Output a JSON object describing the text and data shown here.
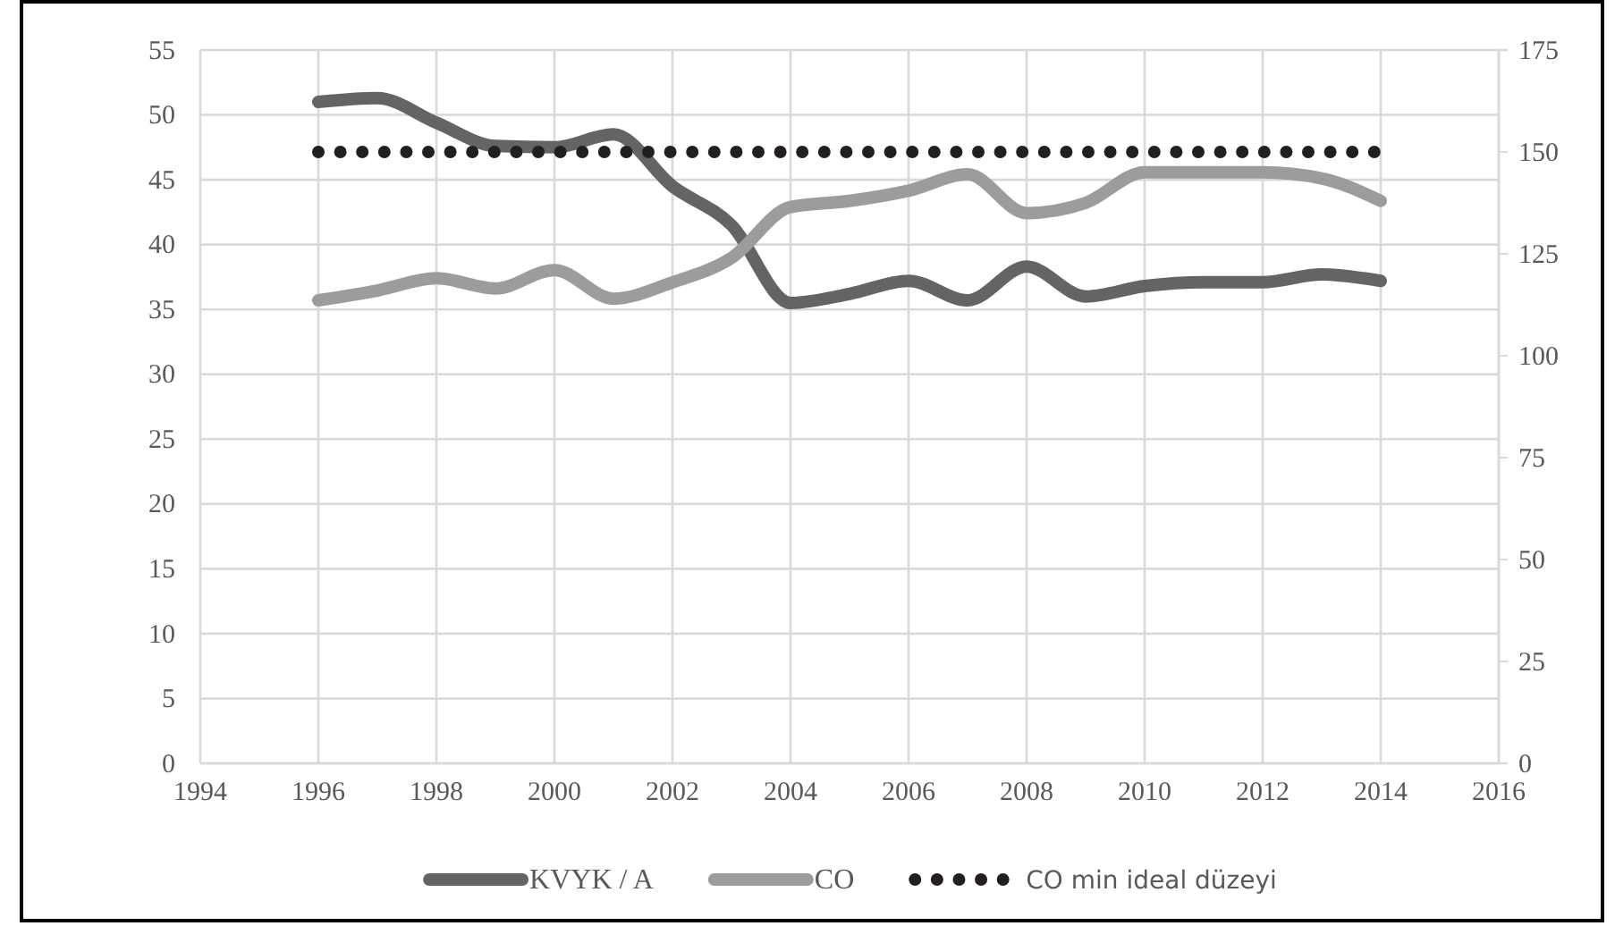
{
  "chart_data": {
    "type": "line",
    "x": [
      1996,
      1997,
      1998,
      1999,
      2000,
      2001,
      2002,
      2003,
      2004,
      2005,
      2006,
      2007,
      2008,
      2009,
      2010,
      2011,
      2012,
      2013,
      2014
    ],
    "series": [
      {
        "name": "KVYK / A",
        "color": "#646464",
        "values": [
          51,
          51.3,
          49.4,
          47.6,
          47.5,
          48.5,
          44.5,
          41.5,
          35.5,
          36.2,
          37.2,
          35.7,
          38.3,
          36,
          36.8,
          37.1,
          37.1,
          37.7,
          37.2
        ]
      },
      {
        "name": "CO",
        "color": "#9a9c9e",
        "axis": "y2",
        "values": [
          113.6,
          116,
          119,
          116.5,
          121,
          114,
          118,
          124,
          136.5,
          138,
          140.5,
          144.5,
          135,
          137.5,
          145,
          145,
          145,
          143.5,
          138
        ]
      },
      {
        "name": "CO min ideal düzeyi",
        "color": "#231f20",
        "axis": "y2",
        "line_style": "dotted",
        "values": [
          150,
          150,
          150,
          150,
          150,
          150,
          150,
          150,
          150,
          150,
          150,
          150,
          150,
          150,
          150,
          150,
          150,
          150,
          150
        ]
      }
    ],
    "xlim": [
      1994,
      2016
    ],
    "xticks": [
      1994,
      1996,
      1998,
      2000,
      2002,
      2004,
      2006,
      2008,
      2010,
      2012,
      2014,
      2016
    ],
    "ylim": [
      0,
      55
    ],
    "yticks": [
      0,
      5,
      10,
      15,
      20,
      25,
      30,
      35,
      40,
      45,
      50,
      55
    ],
    "y2lim": [
      0,
      175
    ],
    "y2ticks": [
      0,
      25,
      50,
      75,
      100,
      125,
      150,
      175
    ],
    "grid": true,
    "legend": "bottom",
    "marker": "none",
    "line_style": "solid"
  }
}
